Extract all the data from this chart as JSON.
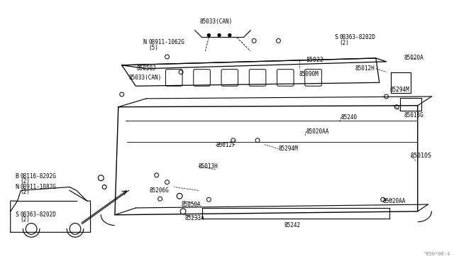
{
  "bg_color": "#ffffff",
  "line_color": "#000000",
  "text_color": "#000000",
  "fig_width": 6.4,
  "fig_height": 3.72,
  "dpi": 100,
  "watermark": "^850*00:4",
  "parts": {
    "top_center": "85033(CAN)",
    "label_85022": "85022",
    "label_85050J": "85050J",
    "label_85090M": "85090M",
    "label_85012H": "85012H",
    "label_85020A": "85020A",
    "label_85294M_top": "85294M",
    "label_85013G": "85013G",
    "label_85010S": "85010S",
    "label_85240": "85240",
    "label_85020AA_mid": "85020AA",
    "label_85012F": "85012F",
    "label_85294M_bot": "85294M",
    "label_85013H": "85013H",
    "label_85206G": "85206G",
    "label_85050A": "85050A",
    "label_85233A": "85233A",
    "label_85242": "85242",
    "label_85020AA_bot": "85020AA",
    "label_N08911_top": "N 08911-1062G\n(5)",
    "label_S08363_top": "S 08363-8202D\n(2)",
    "label_S08363_bot": "S 08363-8202D\n(2)",
    "label_B08116": "B 08116-8202G\n(2)",
    "label_N08911_bot": "N 08911-1082G\n(2)",
    "label_85033CAN": "85033(CAN)"
  }
}
